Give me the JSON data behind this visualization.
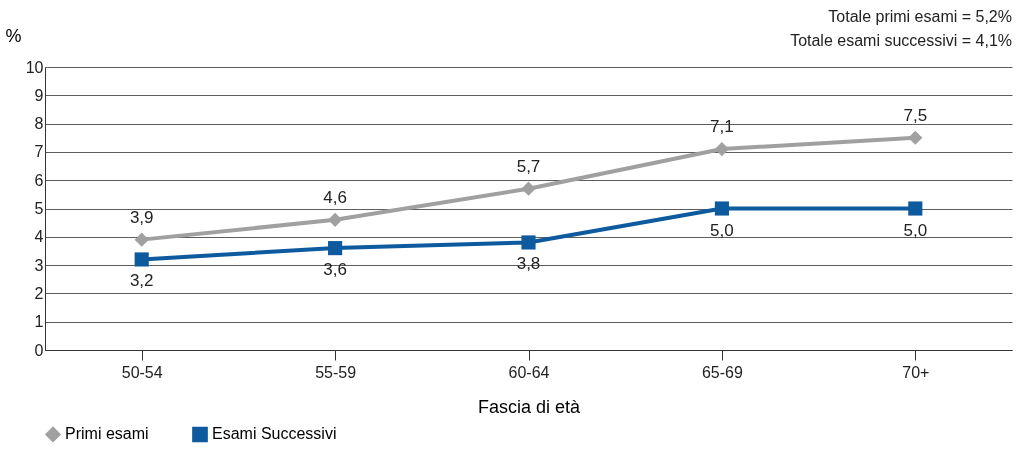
{
  "chart_data": {
    "type": "line",
    "xlabel": "Fascia di età",
    "ylabel": "%",
    "categories": [
      "50-54",
      "55-59",
      "60-64",
      "65-69",
      "70+"
    ],
    "series": [
      {
        "name": "Primi esami",
        "color": "#a0a0a0",
        "marker": "diamond",
        "values": [
          3.9,
          4.6,
          5.7,
          7.1,
          7.5
        ],
        "value_labels": [
          "3,9",
          "4,6",
          "5,7",
          "7,1",
          "7,5"
        ]
      },
      {
        "name": "Esami Successivi",
        "color": "#0d5a9e",
        "marker": "square",
        "values": [
          3.2,
          3.6,
          3.8,
          5.0,
          5.0
        ],
        "value_labels": [
          "3,2",
          "3,6",
          "3,8",
          "5,0",
          "5,0"
        ]
      }
    ],
    "ylim": [
      0,
      10
    ],
    "yticks": [
      0,
      1,
      2,
      3,
      4,
      5,
      6,
      7,
      8,
      9,
      10
    ],
    "grid": "y",
    "legend": "bottom",
    "annotations": [
      "Totale primi esami = 5,2%",
      "Totale esami successivi = 4,1%"
    ]
  }
}
